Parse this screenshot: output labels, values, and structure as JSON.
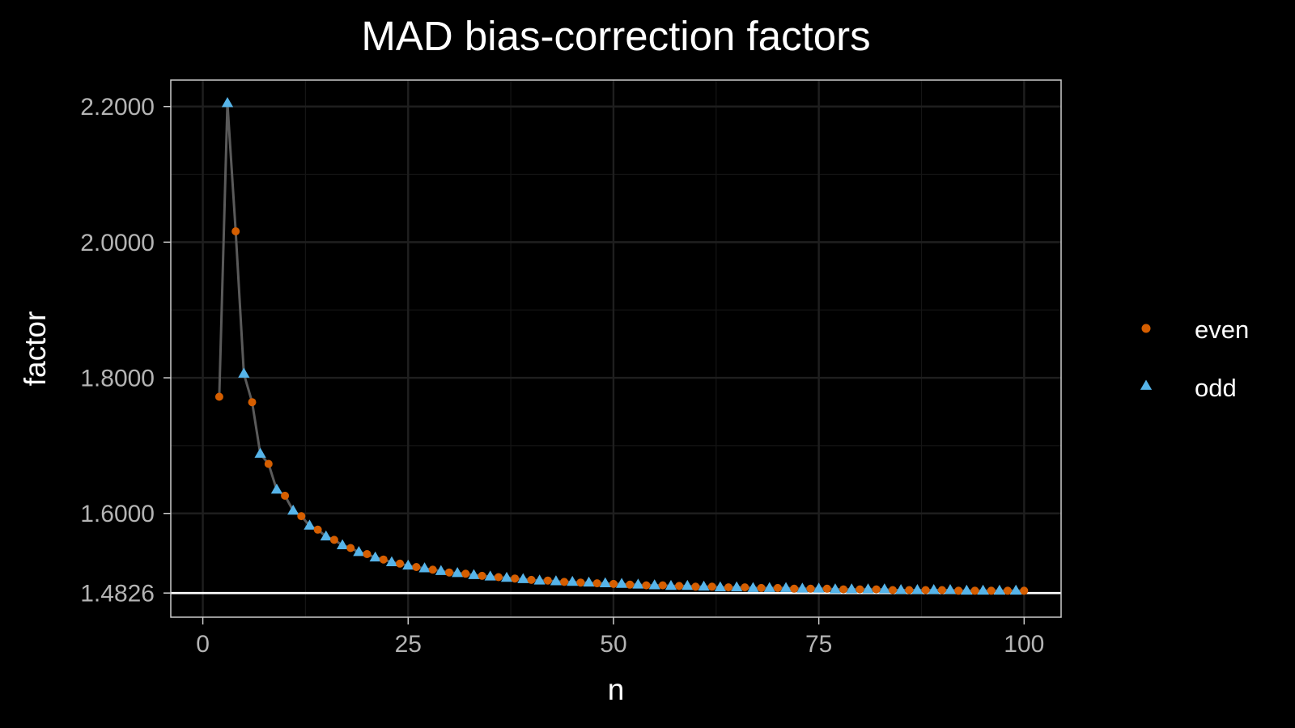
{
  "chart_data": {
    "type": "scatter",
    "title": "MAD bias-correction factors",
    "xlabel": "n",
    "ylabel": "factor",
    "xlim": [
      -3.9,
      104.5
    ],
    "ylim": [
      1.447,
      2.239
    ],
    "x_ticks": [
      0,
      25,
      50,
      75,
      100
    ],
    "x_tick_labels": [
      "0",
      "25",
      "50",
      "75",
      "100"
    ],
    "y_ticks": [
      1.4826,
      1.6,
      1.8,
      2.0,
      2.2
    ],
    "y_tick_labels": [
      "1.4826",
      "1.6000",
      "1.8000",
      "2.0000",
      "2.2000"
    ],
    "y_minor_ticks": [
      1.7,
      1.9,
      2.1
    ],
    "x_minor_ticks": [
      12.5,
      37.5,
      62.5,
      87.5
    ],
    "reference_line": {
      "y": 1.4826,
      "color": "#ffffff"
    },
    "connecting_line_color": "#5a5a5a",
    "grid": true,
    "legend_position": "right",
    "series": [
      {
        "name": "even",
        "marker": "circle",
        "color": "#d55e00"
      },
      {
        "name": "odd",
        "marker": "triangle",
        "color": "#56b4e9"
      }
    ],
    "x": [
      2,
      3,
      4,
      5,
      6,
      7,
      8,
      9,
      10,
      11,
      12,
      13,
      14,
      15,
      16,
      17,
      18,
      19,
      20,
      21,
      22,
      23,
      24,
      25,
      26,
      27,
      28,
      29,
      30,
      31,
      32,
      33,
      34,
      35,
      36,
      37,
      38,
      39,
      40,
      41,
      42,
      43,
      44,
      45,
      46,
      47,
      48,
      49,
      50,
      51,
      52,
      53,
      54,
      55,
      56,
      57,
      58,
      59,
      60,
      61,
      62,
      63,
      64,
      65,
      66,
      67,
      68,
      69,
      70,
      71,
      72,
      73,
      74,
      75,
      76,
      77,
      78,
      79,
      80,
      81,
      82,
      83,
      84,
      85,
      86,
      87,
      88,
      89,
      90,
      91,
      92,
      93,
      94,
      95,
      96,
      97,
      98,
      99,
      100
    ],
    "y": [
      1.772,
      2.205,
      2.016,
      1.806,
      1.764,
      1.688,
      1.673,
      1.635,
      1.626,
      1.604,
      1.596,
      1.582,
      1.576,
      1.566,
      1.561,
      1.553,
      1.549,
      1.543,
      1.54,
      1.535,
      1.532,
      1.528,
      1.526,
      1.523,
      1.521,
      1.519,
      1.517,
      1.515,
      1.513,
      1.512,
      1.511,
      1.509,
      1.508,
      1.507,
      1.506,
      1.505,
      1.504,
      1.503,
      1.502,
      1.501,
      1.501,
      1.5,
      1.499,
      1.499,
      1.498,
      1.498,
      1.497,
      1.497,
      1.496,
      1.496,
      1.495,
      1.495,
      1.494,
      1.494,
      1.494,
      1.493,
      1.493,
      1.493,
      1.492,
      1.492,
      1.492,
      1.491,
      1.491,
      1.491,
      1.491,
      1.49,
      1.49,
      1.49,
      1.49,
      1.49,
      1.489,
      1.489,
      1.489,
      1.489,
      1.489,
      1.488,
      1.488,
      1.488,
      1.488,
      1.488,
      1.488,
      1.488,
      1.487,
      1.487,
      1.487,
      1.487,
      1.487,
      1.487,
      1.487,
      1.487,
      1.486,
      1.486,
      1.486,
      1.486,
      1.486,
      1.486,
      1.486,
      1.486,
      1.486
    ]
  }
}
